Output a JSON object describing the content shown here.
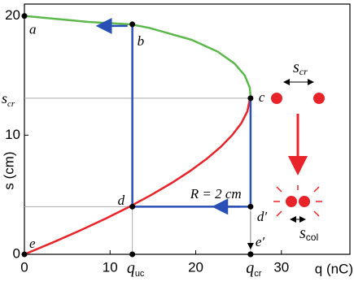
{
  "chart_data": {
    "type": "line",
    "xlabel": "q (nC)",
    "ylabel": "s (cm)",
    "xlim": [
      0,
      38
    ],
    "ylim": [
      0,
      21
    ],
    "xticks": [
      0,
      10,
      20,
      30
    ],
    "yticks": [
      0,
      10,
      20
    ],
    "series": [
      {
        "color": "#e8242a",
        "x": [
          0,
          3.34,
          6.51,
          9.49,
          12.27,
          14.85,
          17.22,
          19.36,
          21.26,
          22.9,
          24.25,
          25.32,
          26.03,
          26.4
        ],
        "values": [
          0,
          1,
          2,
          3,
          4,
          5,
          6,
          7,
          8,
          9,
          10,
          11,
          12,
          13.33
        ]
      },
      {
        "color": "#5cb84a",
        "x": [
          26.4,
          26.3,
          25.73,
          24.54,
          22.58,
          19.53,
          14.57,
          12.39,
          7.48,
          0
        ],
        "values": [
          13.33,
          14,
          15,
          16,
          17,
          18,
          19,
          19.3,
          19.5,
          20
        ]
      }
    ],
    "points": [
      {
        "label": "a",
        "x": 0,
        "y": 20
      },
      {
        "label": "b",
        "x": 12.6,
        "y": 19.3
      },
      {
        "label": "c",
        "x": 26.4,
        "y": 13.1
      },
      {
        "label": "d",
        "x": 12.6,
        "y": 4.0
      },
      {
        "label": "d′",
        "x": 26.4,
        "y": 4.0
      },
      {
        "label": "e",
        "x": 0,
        "y": 0
      },
      {
        "label": "e′",
        "x": 26.4,
        "y": 0
      }
    ],
    "x_marks": [
      {
        "value": 12.6,
        "label": "q",
        "sub": "uc"
      },
      {
        "value": 26.4,
        "label": "q",
        "sub": "cr"
      }
    ],
    "y_marks": [
      {
        "value": 13.1,
        "label": "s",
        "sub": "cr"
      }
    ],
    "path_color": "#2a4fb5",
    "annotation": "R = 2 cm",
    "inset_top": {
      "label": "s",
      "sub": "cr"
    },
    "inset_bottom": {
      "label": "s",
      "sub": "col"
    }
  }
}
